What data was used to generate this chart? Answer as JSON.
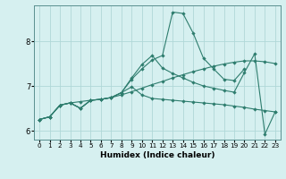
{
  "xlabel": "Humidex (Indice chaleur)",
  "bg_color": "#d6f0f0",
  "grid_color": "#b0d8d8",
  "line_color": "#2e7d6e",
  "xlim": [
    -0.5,
    23.5
  ],
  "ylim": [
    5.8,
    8.8
  ],
  "xticks": [
    0,
    1,
    2,
    3,
    4,
    5,
    6,
    7,
    8,
    9,
    10,
    11,
    12,
    13,
    14,
    15,
    16,
    17,
    18,
    19,
    20,
    21,
    22,
    23
  ],
  "yticks": [
    6,
    7,
    8
  ],
  "series": [
    [
      6.25,
      6.31,
      6.57,
      6.62,
      6.65,
      6.68,
      6.7,
      6.74,
      6.8,
      6.87,
      6.95,
      7.03,
      7.1,
      7.18,
      7.25,
      7.32,
      7.38,
      7.44,
      7.49,
      7.53,
      7.56,
      7.56,
      7.54,
      7.5
    ],
    [
      6.25,
      6.31,
      6.57,
      6.62,
      6.5,
      6.68,
      6.7,
      6.74,
      6.85,
      7.18,
      7.48,
      7.68,
      7.4,
      7.28,
      7.18,
      7.08,
      7.0,
      6.95,
      6.9,
      6.86,
      7.3,
      7.72,
      5.92,
      6.42
    ],
    [
      6.25,
      6.31,
      6.57,
      6.62,
      6.5,
      6.68,
      6.7,
      6.74,
      6.85,
      7.15,
      7.38,
      7.58,
      7.68,
      8.65,
      8.62,
      8.18,
      7.62,
      7.38,
      7.15,
      7.12,
      7.38,
      null,
      null,
      null
    ],
    [
      6.25,
      6.31,
      6.57,
      6.62,
      6.5,
      6.68,
      6.7,
      6.74,
      6.85,
      6.98,
      6.8,
      6.72,
      6.7,
      6.68,
      6.66,
      6.64,
      6.62,
      6.6,
      6.58,
      6.55,
      6.52,
      6.48,
      6.45,
      6.42
    ]
  ]
}
